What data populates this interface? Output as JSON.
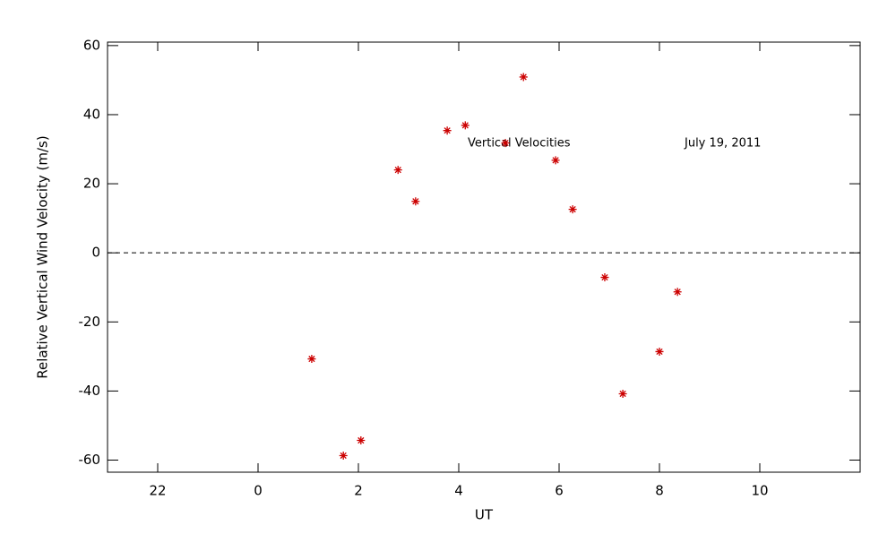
{
  "chart_data": {
    "type": "scatter",
    "xlabel": "UT",
    "ylabel": "Relative Vertical Wind Velocity (m/s)",
    "annotations": [
      "Vertical Velocities",
      "July 19, 2011"
    ],
    "x": [
      1.07,
      1.7,
      2.05,
      2.79,
      3.14,
      3.77,
      4.13,
      4.93,
      5.29,
      5.93,
      6.27,
      6.91,
      7.27,
      8.0,
      8.36
    ],
    "values": [
      -30.7,
      -58.7,
      -54.3,
      24.0,
      14.9,
      35.4,
      36.9,
      31.8,
      50.9,
      26.8,
      12.6,
      -7.1,
      -40.8,
      -28.6,
      -11.3
    ],
    "color": "#cc0000",
    "marker": "asterisk",
    "xlim": [
      -3,
      12
    ],
    "xticks": [
      {
        "value": -2,
        "label": "22"
      },
      0,
      2,
      4,
      6,
      8,
      10
    ],
    "ylim": [
      -63.5,
      61
    ],
    "yticks": [
      -60,
      -40,
      -20,
      0,
      20,
      40,
      60
    ],
    "reference_line": 0
  }
}
